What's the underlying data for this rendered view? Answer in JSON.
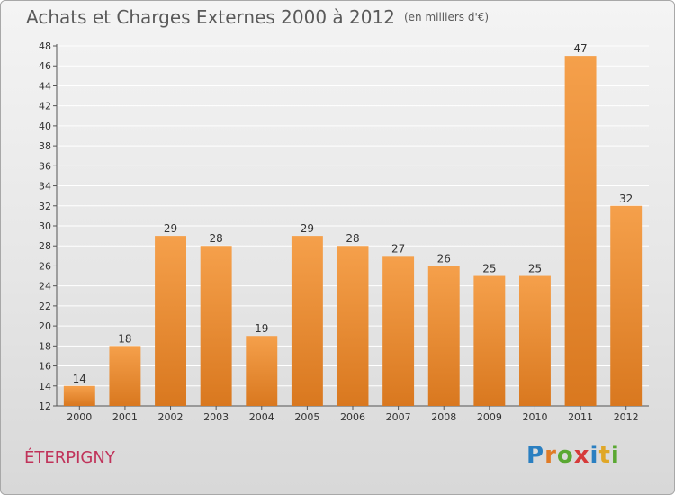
{
  "header": {
    "title": "Achats et Charges Externes 2000 à 2012",
    "unit": "(en milliers d'€)"
  },
  "footer": {
    "commune": "ÉTERPIGNY",
    "logo_text": "Proxiti"
  },
  "colors": {
    "bar_top": "#f5a04b",
    "bar_bottom": "#d9781f",
    "grid": "#ffffff",
    "title_text": "#5a5a5a",
    "commune_text": "#c0335a"
  },
  "chart_data": {
    "type": "bar",
    "title": "Achats et Charges Externes 2000 à 2012",
    "subtitle": "(en milliers d'€)",
    "xlabel": "",
    "ylabel": "",
    "categories": [
      "2000",
      "2001",
      "2002",
      "2003",
      "2004",
      "2005",
      "2006",
      "2007",
      "2008",
      "2009",
      "2010",
      "2011",
      "2012"
    ],
    "values": [
      14,
      18,
      29,
      28,
      19,
      29,
      28,
      27,
      26,
      25,
      25,
      47,
      32
    ],
    "ylim": [
      12,
      48
    ],
    "yticks": [
      12,
      14,
      16,
      18,
      20,
      22,
      24,
      26,
      28,
      30,
      32,
      34,
      36,
      38,
      40,
      42,
      44,
      46,
      48
    ],
    "grid": true,
    "legend": "none"
  }
}
